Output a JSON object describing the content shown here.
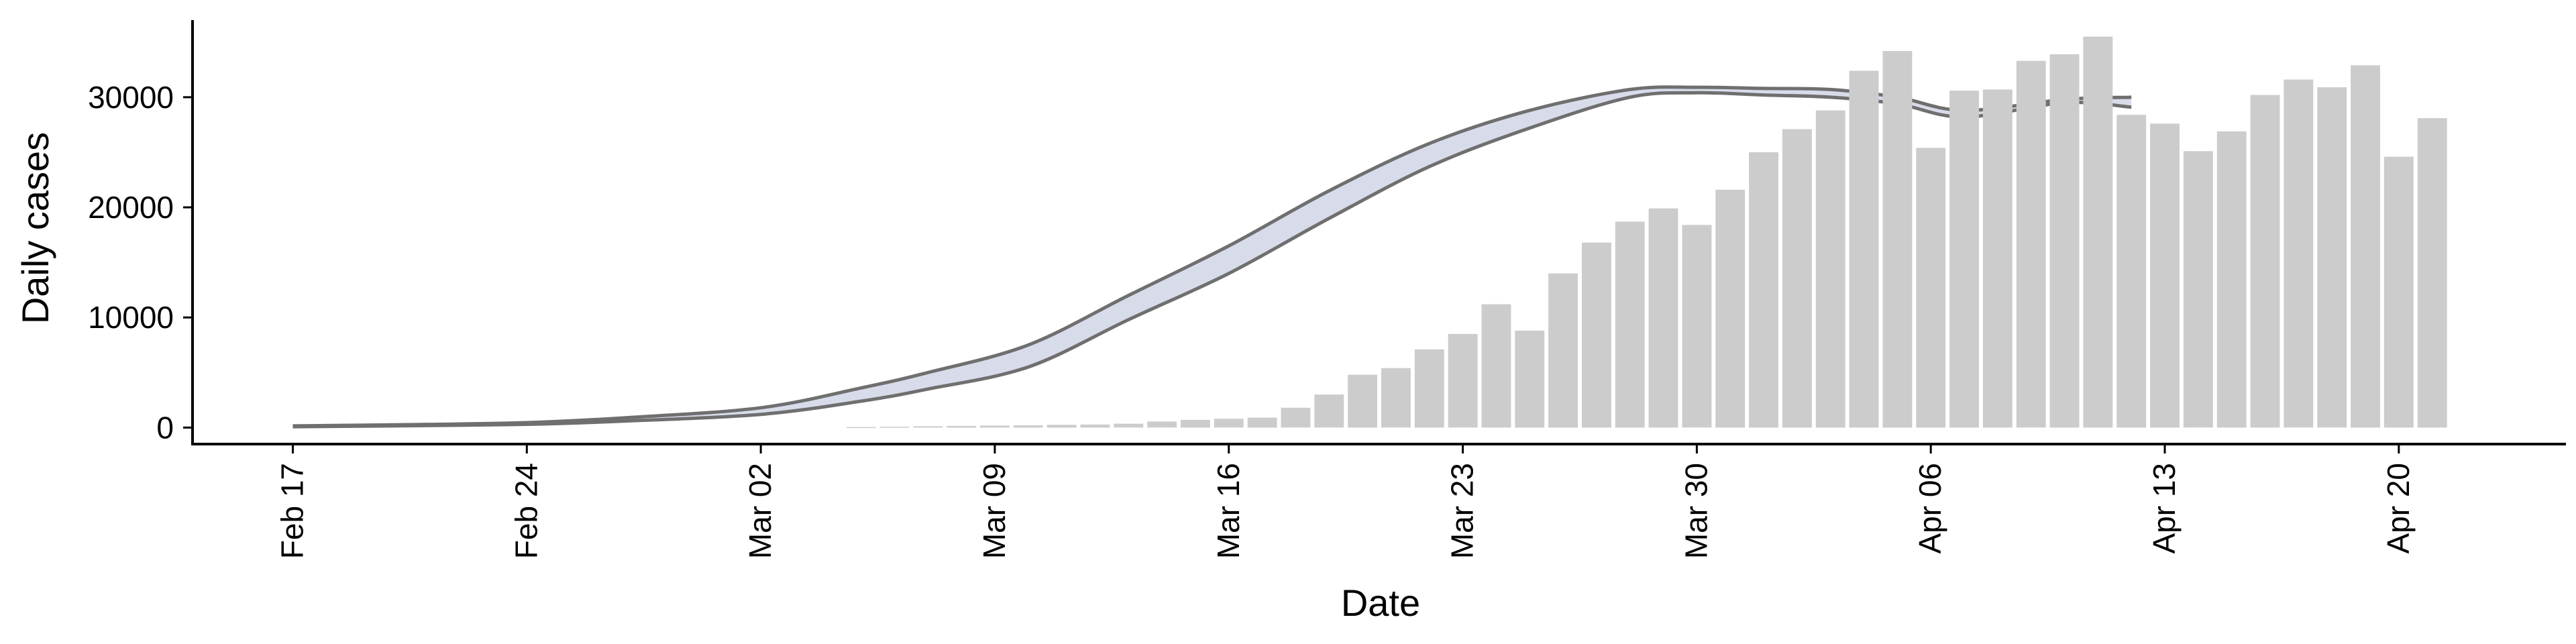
{
  "chart_data": {
    "type": "bar",
    "xlabel": "Date",
    "ylabel": "Daily cases",
    "ylim": [
      -1500,
      37000
    ],
    "x_range": [
      "2020-02-14",
      "2020-04-25"
    ],
    "y_ticks": [
      0,
      10000,
      20000,
      30000
    ],
    "x_ticks": [
      {
        "date": "2020-02-17",
        "label": "Feb 17"
      },
      {
        "date": "2020-02-24",
        "label": "Feb 24"
      },
      {
        "date": "2020-03-02",
        "label": "Mar 02"
      },
      {
        "date": "2020-03-09",
        "label": "Mar 09"
      },
      {
        "date": "2020-03-16",
        "label": "Mar 16"
      },
      {
        "date": "2020-03-23",
        "label": "Mar 23"
      },
      {
        "date": "2020-03-30",
        "label": "Mar 30"
      },
      {
        "date": "2020-04-06",
        "label": "Apr 06"
      },
      {
        "date": "2020-04-13",
        "label": "Apr 13"
      },
      {
        "date": "2020-04-20",
        "label": "Apr 20"
      }
    ],
    "bars": {
      "dates": [
        "2020-03-05",
        "2020-03-06",
        "2020-03-07",
        "2020-03-08",
        "2020-03-09",
        "2020-03-10",
        "2020-03-11",
        "2020-03-12",
        "2020-03-13",
        "2020-03-14",
        "2020-03-15",
        "2020-03-16",
        "2020-03-17",
        "2020-03-18",
        "2020-03-19",
        "2020-03-20",
        "2020-03-21",
        "2020-03-22",
        "2020-03-23",
        "2020-03-24",
        "2020-03-25",
        "2020-03-26",
        "2020-03-27",
        "2020-03-28",
        "2020-03-29",
        "2020-03-30",
        "2020-03-31",
        "2020-04-01",
        "2020-04-02",
        "2020-04-03",
        "2020-04-04",
        "2020-04-05",
        "2020-04-06",
        "2020-04-07",
        "2020-04-08",
        "2020-04-09",
        "2020-04-10",
        "2020-04-11",
        "2020-04-12",
        "2020-04-13",
        "2020-04-14",
        "2020-04-15",
        "2020-04-16",
        "2020-04-17",
        "2020-04-18",
        "2020-04-19",
        "2020-04-20",
        "2020-04-21"
      ],
      "values": [
        50,
        80,
        120,
        150,
        180,
        200,
        250,
        280,
        350,
        550,
        700,
        800,
        900,
        1800,
        3000,
        4800,
        5400,
        7100,
        8500,
        11200,
        8800,
        14000,
        16800,
        18700,
        19900,
        18400,
        21600,
        25000,
        27100,
        28800,
        32400,
        34200,
        25400,
        30600,
        30700,
        33300,
        33900,
        35500,
        28400,
        27600,
        25100,
        26900,
        30200,
        31600,
        30900,
        32900,
        24600,
        28100
      ]
    },
    "band": {
      "dates": [
        "2020-02-17",
        "2020-02-20",
        "2020-02-24",
        "2020-02-27",
        "2020-03-02",
        "2020-03-05",
        "2020-03-07",
        "2020-03-10",
        "2020-03-13",
        "2020-03-16",
        "2020-03-19",
        "2020-03-22",
        "2020-03-25",
        "2020-03-28",
        "2020-03-30",
        "2020-04-01",
        "2020-04-03",
        "2020-04-05",
        "2020-04-07",
        "2020-04-10",
        "2020-04-12"
      ],
      "lower": [
        80,
        150,
        300,
        600,
        1200,
        2400,
        3500,
        5500,
        9800,
        14000,
        19000,
        23700,
        27200,
        30000,
        30400,
        30200,
        30000,
        29400,
        28200,
        29500,
        29100
      ],
      "upper": [
        150,
        250,
        450,
        900,
        1800,
        3600,
        5000,
        7500,
        12000,
        16500,
        21500,
        25800,
        28800,
        30700,
        30900,
        30800,
        30700,
        30000,
        28800,
        29800,
        30000
      ]
    }
  }
}
